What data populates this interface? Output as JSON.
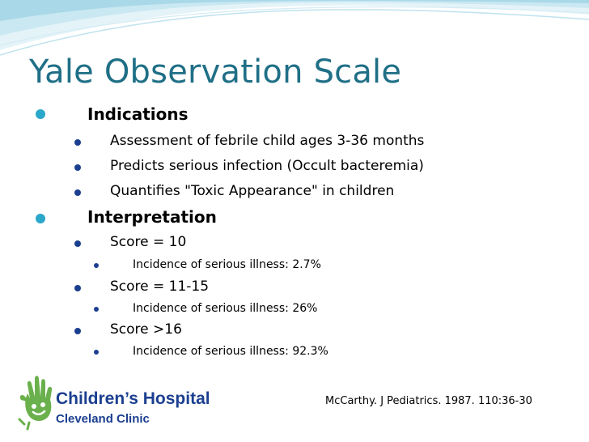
{
  "title": "Yale Observation Scale",
  "sections": [
    {
      "heading": "Indications",
      "items": [
        {
          "text": "Assessment of febrile child ages 3-36 months"
        },
        {
          "text": "Predicts serious infection (Occult bacteremia)"
        },
        {
          "text": "Quantifies \"Toxic Appearance\" in children"
        }
      ]
    },
    {
      "heading": "Interpretation",
      "items": [
        {
          "text": "Score = 10",
          "sub": "Incidence of serious illness: 2.7%"
        },
        {
          "text": "Score = 11-15",
          "sub": "Incidence of serious illness: 26%"
        },
        {
          "text": "Score >16",
          "sub": "Incidence of serious illness: 92.3%"
        }
      ]
    }
  ],
  "citation": "McCarthy. J Pediatrics. 1987. 110:36-30",
  "logo": {
    "name": "Children’s Hospital",
    "sub": "Cleveland Clinic",
    "icon": "hand-logo-icon"
  },
  "colors": {
    "title": "#1f6f86",
    "wave_light": "#d8eef5",
    "wave_mid": "#a9d8e8",
    "bullet_l1": "#2aa7c9",
    "bullet_l2": "#1b3f8f",
    "logo_green": "#6ab04c",
    "logo_blue": "#1b3f8f"
  }
}
